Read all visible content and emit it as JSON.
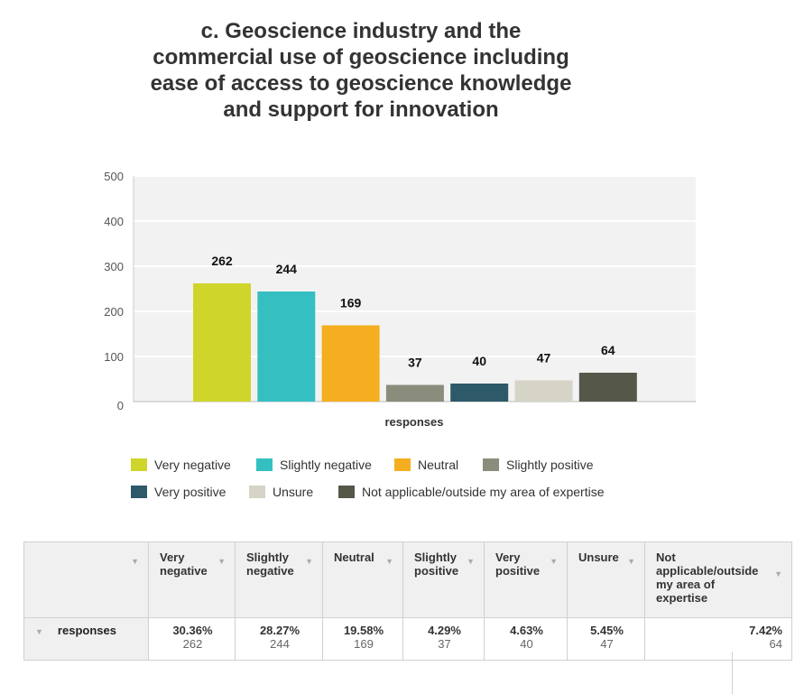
{
  "title_lines": [
    "c. Geoscience industry and the",
    "commercial use of geoscience including",
    "ease of access to geoscience knowledge",
    "and support for innovation"
  ],
  "chart_data": {
    "type": "bar",
    "title": "c. Geoscience industry and the commercial use of geoscience including ease of access to geoscience knowledge and support for innovation",
    "xlabel": "responses",
    "ylabel": "",
    "ylim": [
      0,
      500
    ],
    "yticks": [
      0,
      100,
      200,
      300,
      400,
      500
    ],
    "grid": true,
    "legend_position": "bottom",
    "series": [
      {
        "name": "Very negative",
        "value": 262,
        "color": "#cfd52b"
      },
      {
        "name": "Slightly negative",
        "value": 244,
        "color": "#35bfc1"
      },
      {
        "name": "Neutral",
        "value": 169,
        "color": "#f4ae20"
      },
      {
        "name": "Slightly positive",
        "value": 37,
        "color": "#8b8d7c"
      },
      {
        "name": "Very positive",
        "value": 40,
        "color": "#2e5968"
      },
      {
        "name": "Unsure",
        "value": 47,
        "color": "#d5d4c6"
      },
      {
        "name": "Not applicable/outside my area of expertise",
        "value": 64,
        "color": "#555749"
      }
    ]
  },
  "table": {
    "headers": [
      "",
      "Very negative",
      "Slightly negative",
      "Neutral",
      "Slightly positive",
      "Very positive",
      "Unsure",
      "Not applicable/outside my area of expertise"
    ],
    "row_label": "responses",
    "cells": [
      {
        "pct": "30.36%",
        "count": "262"
      },
      {
        "pct": "28.27%",
        "count": "244"
      },
      {
        "pct": "19.58%",
        "count": "169"
      },
      {
        "pct": "4.29%",
        "count": "37"
      },
      {
        "pct": "4.63%",
        "count": "40"
      },
      {
        "pct": "5.45%",
        "count": "47"
      },
      {
        "pct": "7.42%",
        "count": "64"
      }
    ]
  }
}
